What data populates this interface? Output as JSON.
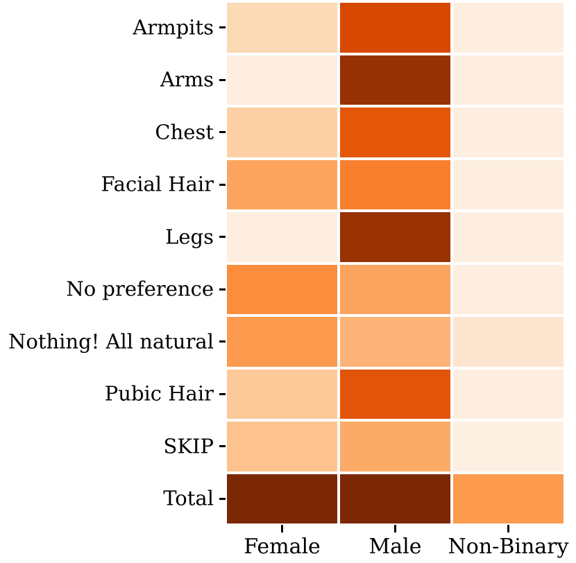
{
  "chart_data": {
    "type": "heatmap",
    "title": "",
    "xlabel": "",
    "ylabel": "",
    "legend": "none",
    "grid_gap_color": "#ffffff",
    "tick_color": "#000000",
    "label_color": "#000000",
    "colormap": "Oranges",
    "rows": [
      "Armpits",
      "Arms",
      "Chest",
      "Facial Hair",
      "Legs",
      "No preference",
      "Nothing! All natural",
      "Pubic Hair",
      "SKIP",
      "Total"
    ],
    "columns": [
      "Female",
      "Male",
      "Non-Binary"
    ],
    "cell_colors": [
      [
        "#fcd9b5",
        "#d74901",
        "#fdeee0"
      ],
      [
        "#fdeee0",
        "#963103",
        "#fdeee0"
      ],
      [
        "#fdd1a5",
        "#e45709",
        "#fdeee0"
      ],
      [
        "#fda55f",
        "#f87f2d",
        "#fdeee0"
      ],
      [
        "#fdeee0",
        "#993203",
        "#fdeee0"
      ],
      [
        "#fb8d3d",
        "#fca35d",
        "#fdeee0"
      ],
      [
        "#fc9a4e",
        "#fcb377",
        "#fde4cf"
      ],
      [
        "#fcca99",
        "#e2540a",
        "#fdeee0"
      ],
      [
        "#fdc38e",
        "#fcab67",
        "#fdf0e3"
      ],
      [
        "#7c2704",
        "#7c2704",
        "#fc9a4e"
      ]
    ]
  }
}
